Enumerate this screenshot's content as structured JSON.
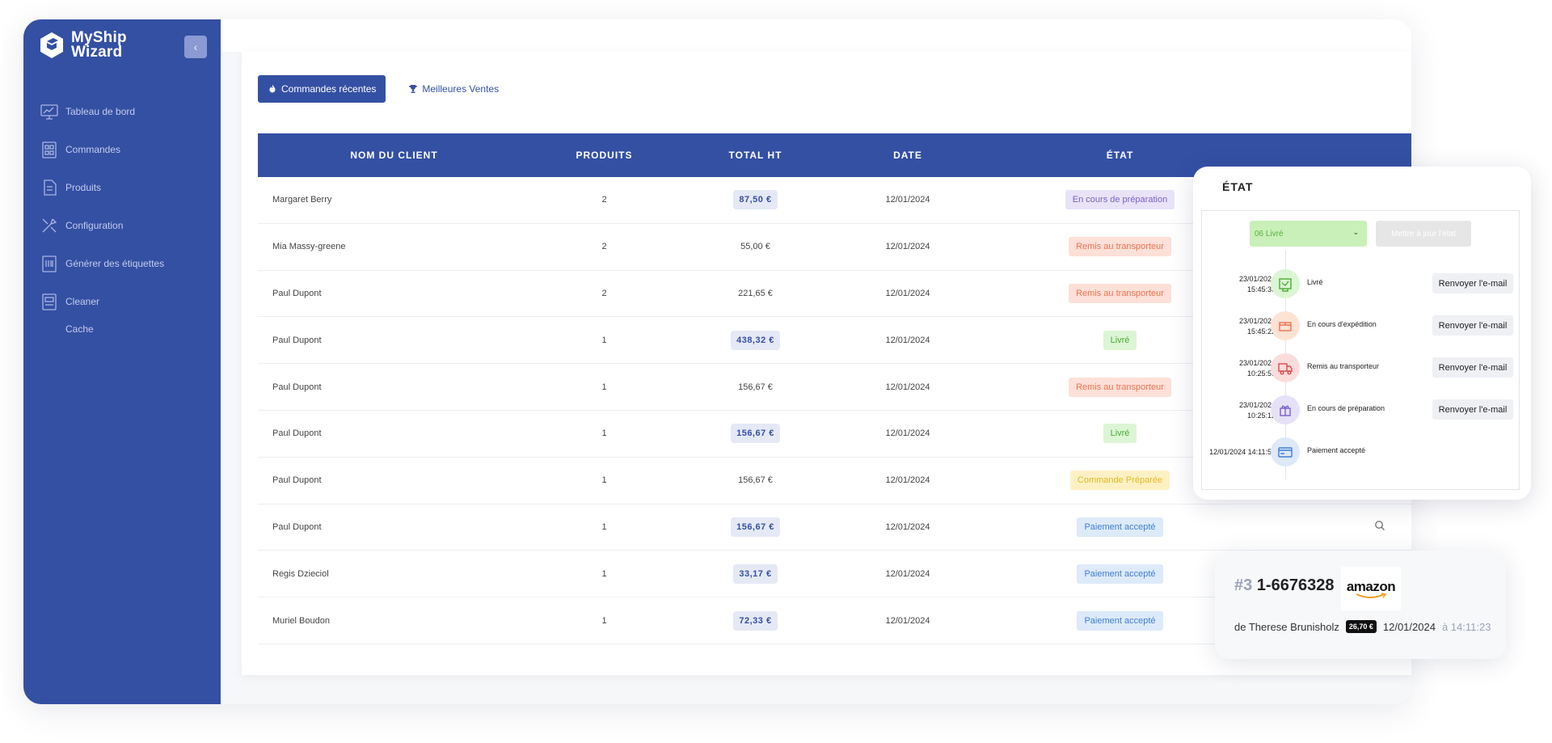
{
  "app": {
    "logo_line1": "MyShip",
    "logo_line2": "Wizard",
    "collapse_icon": "chevron-left-icon"
  },
  "sidebar": {
    "items": [
      {
        "label": "Tableau de bord",
        "icon": "dashboard-icon"
      },
      {
        "label": "Commandes",
        "icon": "orders-icon"
      },
      {
        "label": "Produits",
        "icon": "products-icon"
      },
      {
        "label": "Configuration",
        "icon": "tools-icon"
      },
      {
        "label": "Générer des étiquettes",
        "icon": "labels-icon"
      },
      {
        "label": "Cleaner",
        "icon": "cleaner-icon"
      }
    ],
    "sub_items": [
      {
        "label": "Cache"
      }
    ]
  },
  "tabs": [
    {
      "label": "Commandes récentes",
      "icon": "fire-icon",
      "active": true
    },
    {
      "label": "Meilleures Ventes",
      "icon": "trophy-icon",
      "active": false
    }
  ],
  "table": {
    "headers": [
      "NOM DU CLIENT",
      "PRODUITS",
      "TOTAL HT",
      "DATE",
      "ÉTAT"
    ],
    "rows": [
      {
        "name": "Margaret Berry",
        "products": "2",
        "total": "87,50 €",
        "date": "12/01/2024",
        "status": "En cours de préparation",
        "status_type": "prep",
        "hl": true
      },
      {
        "name": "Mia Massy-greene",
        "products": "2",
        "total": "55,00 €",
        "date": "12/01/2024",
        "status": "Remis au transporteur",
        "status_type": "remis",
        "hl": false
      },
      {
        "name": "Paul Dupont",
        "products": "2",
        "total": "221,65 €",
        "date": "12/01/2024",
        "status": "Remis au transporteur",
        "status_type": "remis",
        "hl": false
      },
      {
        "name": "Paul Dupont",
        "products": "1",
        "total": "438,32 €",
        "date": "12/01/2024",
        "status": "Livré",
        "status_type": "livre",
        "hl": true
      },
      {
        "name": "Paul Dupont",
        "products": "1",
        "total": "156,67 €",
        "date": "12/01/2024",
        "status": "Remis au transporteur",
        "status_type": "remis",
        "hl": false
      },
      {
        "name": "Paul Dupont",
        "products": "1",
        "total": "156,67 €",
        "date": "12/01/2024",
        "status": "Livré",
        "status_type": "livre",
        "hl": true
      },
      {
        "name": "Paul Dupont",
        "products": "1",
        "total": "156,67 €",
        "date": "12/01/2024",
        "status": "Commande Préparée",
        "status_type": "cmd",
        "hl": false
      },
      {
        "name": "Paul Dupont",
        "products": "1",
        "total": "156,67 €",
        "date": "12/01/2024",
        "status": "Paiement accepté",
        "status_type": "paie",
        "hl": true,
        "action_icon": "search-icon"
      },
      {
        "name": "Regis Dzieciol",
        "products": "1",
        "total": "33,17 €",
        "date": "12/01/2024",
        "status": "Paiement accepté",
        "status_type": "paie",
        "hl": true
      },
      {
        "name": "Muriel Boudon",
        "products": "1",
        "total": "72,33 €",
        "date": "12/01/2024",
        "status": "Paiement accepté",
        "status_type": "paie",
        "hl": true
      }
    ]
  },
  "etat_card": {
    "title": "ÉTAT",
    "select_value": "06 Livré",
    "update_label": "Mettre à jour l'état",
    "timeline": [
      {
        "date": "23/01/2024",
        "time": "15:45:36",
        "label": "Livré",
        "button": "Renvoyer l'e-mail",
        "color": "#dcf5d4",
        "icon": "delivered-icon"
      },
      {
        "date": "23/01/2024",
        "time": "15:45:22",
        "label": "En cours d'expédition",
        "button": "Renvoyer l'e-mail",
        "color": "#fde3d4",
        "icon": "shipping-box-icon"
      },
      {
        "date": "23/01/2024",
        "time": "10:25:59",
        "label": "Remis au transporteur",
        "button": "Renvoyer l'e-mail",
        "color": "#fbdcdc",
        "icon": "truck-icon"
      },
      {
        "date": "23/01/2024",
        "time": "10:25:12",
        "label": "En cours de préparation",
        "button": "Renvoyer l'e-mail",
        "color": "#e6e1f7",
        "icon": "package-icon"
      },
      {
        "date": "12/01/2024 14:11:53",
        "time": "",
        "label": "Paiement accepté",
        "button": "",
        "color": "#dde8f9",
        "icon": "credit-card-icon"
      }
    ]
  },
  "order_card": {
    "hash": "#3",
    "number": "1-6676328",
    "logo_text": "amazon",
    "from": "de Therese Brunisholz",
    "amount": "26,70 €",
    "date": "12/01/2024",
    "at": "à 14:11:23"
  }
}
